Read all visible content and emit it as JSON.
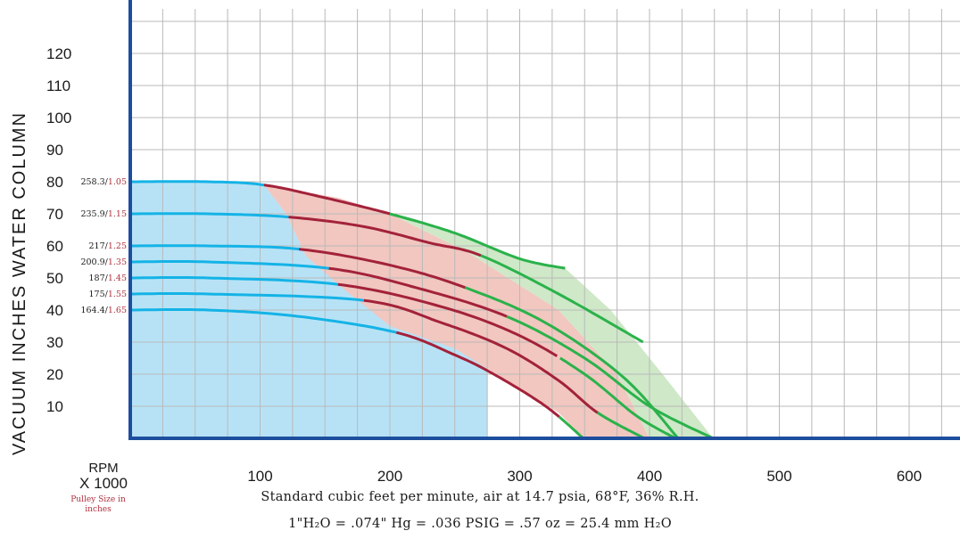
{
  "chart_data": {
    "type": "line",
    "xlabel": "Standard cubic feet per minute, air at 14.7 psia, 68°F, 36% R.H.",
    "xlabel_line2": "1\"H₂O = .074\" Hg = .036 PSIG = .57 oz = 25.4 mm H₂O",
    "ylabel": "VACUUM INCHES WATER COLUMN",
    "xlim": [
      0,
      640
    ],
    "ylim": [
      0,
      125
    ],
    "x_ticks": [
      "100",
      "200",
      "300",
      "400",
      "500",
      "600"
    ],
    "y_ticks": [
      "10",
      "20",
      "30",
      "40",
      "50",
      "60",
      "70",
      "80",
      "90",
      "100",
      "110",
      "120"
    ],
    "corner_label_top": "RPM",
    "corner_label_mid": "X 1000",
    "corner_label_bottom": "Pulley Size in inches",
    "grid": true,
    "colors": {
      "axis": "#1d4e9e",
      "low_range_line": "#14b3e6",
      "mid_range_line": "#a3223a",
      "high_range_line": "#2bb24b",
      "low_range_fill": "#b7e2f6",
      "mid_range_fill": "#f1c7c0",
      "high_range_fill": "#cfe8c8"
    },
    "series": [
      {
        "rpm": "258.3",
        "pulley": "1.05",
        "break_low_mid": 103,
        "break_mid_high": 200,
        "x": [
          0,
          60,
          103,
          150,
          200,
          250,
          300,
          335
        ],
        "y": [
          80,
          80,
          79,
          75,
          70,
          64,
          56,
          53
        ]
      },
      {
        "rpm": "235.9",
        "pulley": "1.15",
        "break_low_mid": 122,
        "break_mid_high": 270,
        "x": [
          0,
          60,
          122,
          180,
          230,
          270,
          330,
          395
        ],
        "y": [
          70,
          70,
          69,
          66,
          61,
          57,
          45,
          30
        ]
      },
      {
        "rpm": "217",
        "pulley": "1.25",
        "break_low_mid": 130,
        "break_mid_high": 258,
        "x": [
          0,
          60,
          130,
          200,
          258,
          320,
          380,
          422
        ],
        "y": [
          60,
          60,
          59,
          54,
          47,
          36,
          19,
          0
        ]
      },
      {
        "rpm": "200.9",
        "pulley": "1.35",
        "break_low_mid": 153,
        "break_mid_high": 290,
        "x": [
          0,
          60,
          153,
          220,
          290,
          350,
          400,
          449
        ],
        "y": [
          55,
          55,
          53,
          47,
          38,
          25,
          10,
          0
        ]
      },
      {
        "rpm": "187",
        "pulley": "1.45",
        "break_low_mid": 160,
        "break_mid_high": 330,
        "x": [
          0,
          60,
          160,
          240,
          300,
          350,
          390,
          420
        ],
        "y": [
          50,
          50,
          48,
          41,
          32,
          20,
          7,
          0
        ]
      },
      {
        "rpm": "175",
        "pulley": "1.55",
        "break_low_mid": 180,
        "break_mid_high": 360,
        "x": [
          0,
          60,
          180,
          240,
          290,
          330,
          360,
          396
        ],
        "y": [
          45,
          45,
          43,
          36,
          28,
          18,
          8,
          0
        ]
      },
      {
        "rpm": "164.4",
        "pulley": "1.65",
        "break_low_mid": 205,
        "break_mid_high": 330,
        "x": [
          0,
          60,
          130,
          205,
          250,
          280,
          320,
          349
        ],
        "y": [
          40,
          40,
          38,
          33,
          26,
          20,
          10,
          0
        ]
      }
    ]
  }
}
